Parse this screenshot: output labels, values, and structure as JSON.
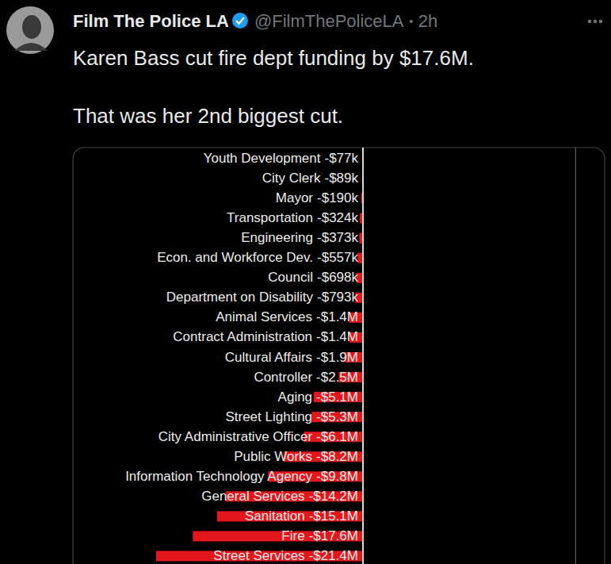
{
  "tweet": {
    "name": "Film The Police LA",
    "handle": "@FilmThePoliceLA",
    "time": "2h",
    "text": [
      "Karen Bass cut fire dept funding by $17.6M.",
      "That was her 2nd biggest cut."
    ]
  },
  "chart_data": {
    "type": "bar",
    "orientation": "horizontal",
    "categories": [
      "Youth Development",
      "City Clerk",
      "Mayor",
      "Transportation",
      "Engineering",
      "Econ. and Workforce Dev.",
      "Council",
      "Department on Disability",
      "Animal Services",
      "Contract Administration",
      "Cultural Affairs",
      "Controller",
      "Aging",
      "Street Lighting",
      "City Administrative Officer",
      "Public Works",
      "Information Technology Agency",
      "General Services",
      "Sanitation",
      "Fire",
      "Street Services"
    ],
    "values": [
      -0.077,
      -0.089,
      -0.19,
      -0.324,
      -0.373,
      -0.557,
      -0.698,
      -0.793,
      -1.4,
      -1.4,
      -1.9,
      -2.5,
      -5.1,
      -5.3,
      -6.1,
      -8.2,
      -9.8,
      -14.2,
      -15.1,
      -17.6,
      -21.4
    ],
    "value_labels": [
      "-$77k",
      "-$89k",
      "-$190k",
      "-$324k",
      "-$373k",
      "-$557k",
      "-$698k",
      "-$793k",
      "-$1.4M",
      "-$1.4M",
      "-$1.9M",
      "-$2.5M",
      "-$5.1M",
      "-$5.3M",
      "-$6.1M",
      "-$8.2M",
      "-$9.8M",
      "-$14.2M",
      "-$15.1M",
      "-$17.6M",
      "-$21.4M"
    ],
    "color": "#e3161c",
    "xlim": [
      -30,
      25
    ],
    "xticks": [
      0,
      22
    ],
    "grid": true,
    "data_labels": true,
    "tick_labels": "y"
  }
}
